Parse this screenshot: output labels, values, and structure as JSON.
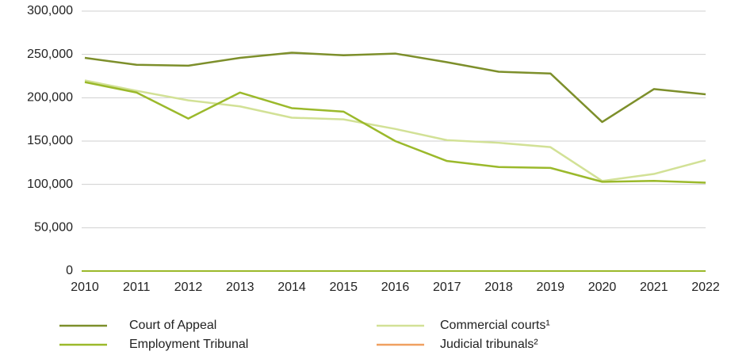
{
  "chart_data": {
    "type": "line",
    "categories": [
      "2010",
      "2011",
      "2012",
      "2013",
      "2014",
      "2015",
      "2016",
      "2017",
      "2018",
      "2019",
      "2020",
      "2021",
      "2022"
    ],
    "series": [
      {
        "name": "Court of Appeal",
        "color": "#7d8f2b",
        "values": [
          246000,
          238000,
          237000,
          246000,
          252000,
          249000,
          251000,
          241000,
          230000,
          228000,
          172000,
          210000,
          204000
        ]
      },
      {
        "name": "Commercial courts¹",
        "color": "#d2e196",
        "values": [
          220000,
          208000,
          197000,
          190000,
          177000,
          175000,
          164000,
          151000,
          148000,
          143000,
          104000,
          112000,
          128000
        ]
      },
      {
        "name": "Employment Tribunal",
        "color": "#9bb92b",
        "values": [
          218000,
          206000,
          176000,
          206000,
          188000,
          184000,
          150000,
          127000,
          120000,
          119000,
          103000,
          104000,
          102000
        ]
      },
      {
        "name": "Judicial tribunals²",
        "color": "#f0a060",
        "values": [
          null,
          null,
          null,
          null,
          null,
          null,
          null,
          null,
          null,
          null,
          null,
          null,
          null
        ]
      }
    ],
    "ylim": [
      0,
      300000
    ],
    "yticks": [
      0,
      {
        "value": 50000,
        "label": "50,000"
      },
      {
        "value": 100000,
        "label": "100,000"
      },
      {
        "value": 150000,
        "label": "150,000"
      },
      {
        "value": 200000,
        "label": "200,000"
      },
      {
        "value": 250000,
        "label": "250,000"
      },
      {
        "value": 300000,
        "label": "300,000"
      }
    ],
    "grid": true
  }
}
